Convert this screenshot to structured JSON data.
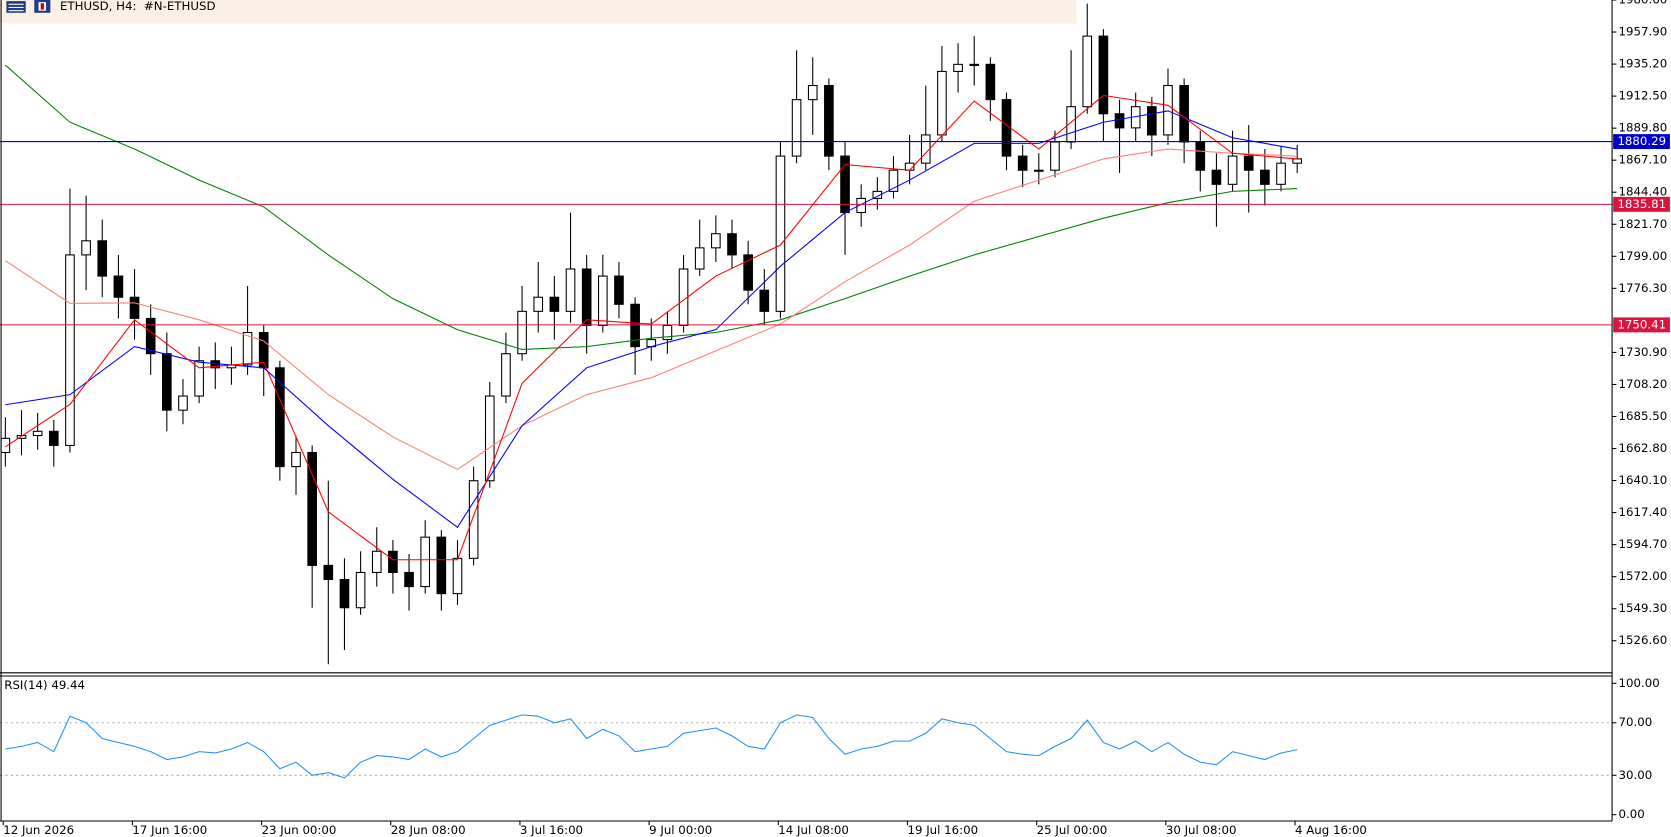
{
  "chart_data": [
    {
      "type": "candlestick",
      "title": "ETHUSD, H4:  #N-ETHUSD",
      "categories": [
        "12 Jun 2026",
        null,
        null,
        null,
        null,
        null,
        null,
        null,
        "17 Jun 16:00",
        null,
        null,
        null,
        null,
        null,
        null,
        null,
        "23 Jun 00:00",
        null,
        null,
        null,
        null,
        null,
        null,
        null,
        "28 Jun 08:00",
        null,
        null,
        null,
        null,
        null,
        null,
        null,
        "3 Jul 16:00",
        null,
        null,
        null,
        null,
        null,
        null,
        null,
        "9 Jul 00:00",
        null,
        null,
        null,
        null,
        null,
        null,
        null,
        "14 Jul 08:00",
        null,
        null,
        null,
        null,
        null,
        null,
        null,
        "19 Jul 16:00",
        null,
        null,
        null,
        null,
        null,
        null,
        null,
        "25 Jul 00:00",
        null,
        null,
        null,
        null,
        null,
        null,
        null,
        "30 Jul 08:00",
        null,
        null,
        null,
        null,
        null,
        null,
        null,
        "4 Aug 16:00"
      ],
      "candles": [
        [
          1660,
          1685,
          1650,
          1670
        ],
        [
          1670,
          1690,
          1658,
          1672
        ],
        [
          1672,
          1688,
          1662,
          1675
        ],
        [
          1675,
          1683,
          1650,
          1665
        ],
        [
          1665,
          1847,
          1660,
          1800
        ],
        [
          1800,
          1842,
          1775,
          1810
        ],
        [
          1810,
          1825,
          1770,
          1785
        ],
        [
          1785,
          1800,
          1755,
          1770
        ],
        [
          1770,
          1790,
          1740,
          1755
        ],
        [
          1755,
          1765,
          1715,
          1730
        ],
        [
          1730,
          1745,
          1675,
          1690
        ],
        [
          1690,
          1712,
          1680,
          1700
        ],
        [
          1700,
          1735,
          1695,
          1725
        ],
        [
          1725,
          1738,
          1705,
          1720
        ],
        [
          1720,
          1735,
          1708,
          1722
        ],
        [
          1722,
          1778,
          1715,
          1745
        ],
        [
          1745,
          1750,
          1700,
          1720
        ],
        [
          1720,
          1725,
          1640,
          1650
        ],
        [
          1650,
          1672,
          1630,
          1660
        ],
        [
          1660,
          1665,
          1550,
          1580
        ],
        [
          1580,
          1640,
          1510,
          1570
        ],
        [
          1570,
          1585,
          1520,
          1550
        ],
        [
          1550,
          1590,
          1545,
          1575
        ],
        [
          1575,
          1607,
          1565,
          1590
        ],
        [
          1590,
          1598,
          1560,
          1575
        ],
        [
          1575,
          1588,
          1548,
          1565
        ],
        [
          1565,
          1612,
          1560,
          1600
        ],
        [
          1600,
          1605,
          1548,
          1560
        ],
        [
          1560,
          1598,
          1552,
          1585
        ],
        [
          1585,
          1650,
          1580,
          1640
        ],
        [
          1640,
          1710,
          1635,
          1700
        ],
        [
          1700,
          1745,
          1695,
          1730
        ],
        [
          1730,
          1778,
          1725,
          1760
        ],
        [
          1760,
          1795,
          1745,
          1770
        ],
        [
          1770,
          1785,
          1740,
          1760
        ],
        [
          1760,
          1830,
          1752,
          1790
        ],
        [
          1790,
          1800,
          1730,
          1750
        ],
        [
          1750,
          1800,
          1745,
          1785
        ],
        [
          1785,
          1795,
          1755,
          1765
        ],
        [
          1765,
          1770,
          1715,
          1735
        ],
        [
          1735,
          1755,
          1725,
          1740
        ],
        [
          1740,
          1760,
          1730,
          1750
        ],
        [
          1750,
          1800,
          1745,
          1790
        ],
        [
          1790,
          1825,
          1785,
          1805
        ],
        [
          1805,
          1828,
          1795,
          1815
        ],
        [
          1815,
          1825,
          1790,
          1800
        ],
        [
          1800,
          1810,
          1765,
          1775
        ],
        [
          1775,
          1790,
          1750,
          1760
        ],
        [
          1760,
          1880,
          1755,
          1870
        ],
        [
          1870,
          1945,
          1865,
          1910
        ],
        [
          1910,
          1940,
          1885,
          1920
        ],
        [
          1920,
          1925,
          1860,
          1870
        ],
        [
          1870,
          1880,
          1800,
          1830
        ],
        [
          1830,
          1850,
          1820,
          1840
        ],
        [
          1840,
          1855,
          1832,
          1845
        ],
        [
          1845,
          1870,
          1840,
          1860
        ],
        [
          1860,
          1885,
          1850,
          1865
        ],
        [
          1865,
          1920,
          1860,
          1885
        ],
        [
          1885,
          1948,
          1880,
          1930
        ],
        [
          1930,
          1950,
          1915,
          1935
        ],
        [
          1935,
          1955,
          1920,
          1935
        ],
        [
          1935,
          1940,
          1895,
          1910
        ],
        [
          1910,
          1915,
          1860,
          1870
        ],
        [
          1870,
          1878,
          1848,
          1860
        ],
        [
          1860,
          1872,
          1850,
          1860
        ],
        [
          1860,
          1888,
          1855,
          1880
        ],
        [
          1880,
          1945,
          1875,
          1905
        ],
        [
          1905,
          1978,
          1900,
          1955
        ],
        [
          1955,
          1960,
          1880,
          1900
        ],
        [
          1900,
          1910,
          1858,
          1890
        ],
        [
          1890,
          1915,
          1880,
          1905
        ],
        [
          1905,
          1912,
          1870,
          1885
        ],
        [
          1885,
          1932,
          1878,
          1920
        ],
        [
          1920,
          1925,
          1865,
          1880
        ],
        [
          1880,
          1888,
          1845,
          1860
        ],
        [
          1860,
          1872,
          1820,
          1850
        ],
        [
          1850,
          1888,
          1845,
          1870
        ],
        [
          1870,
          1892,
          1830,
          1860
        ],
        [
          1860,
          1875,
          1835,
          1850
        ],
        [
          1850,
          1877,
          1845,
          1865
        ],
        [
          1865,
          1878,
          1858,
          1868
        ]
      ],
      "overlays": [
        {
          "color": "#008000",
          "x": [
            0,
            4,
            8,
            12,
            16,
            20,
            24,
            28,
            32,
            36,
            40,
            44,
            48,
            52,
            56,
            60,
            64,
            68,
            72,
            76,
            80
          ],
          "values": [
            1934.5,
            1894,
            1875,
            1853,
            1834,
            1800,
            1769,
            1747,
            1733,
            1735,
            1741,
            1745,
            1754,
            1769,
            1785,
            1800,
            1813,
            1826,
            1837,
            1845,
            1847
          ]
        },
        {
          "color": "#fa8072",
          "x": [
            0,
            4,
            8,
            12,
            16,
            20,
            24,
            28,
            32,
            36,
            40,
            44,
            48,
            52,
            56,
            60,
            64,
            68,
            72,
            76,
            80
          ],
          "values": [
            1795.9,
            1765.7,
            1766,
            1754,
            1739,
            1701,
            1671,
            1648,
            1679,
            1701,
            1713,
            1732,
            1751,
            1781,
            1807,
            1838,
            1853,
            1868,
            1875,
            1872,
            1870
          ]
        },
        {
          "color": "#0000ff",
          "x": [
            0,
            4,
            8,
            12,
            16,
            20,
            24,
            28,
            32,
            36,
            40,
            44,
            48,
            52,
            56,
            60,
            64,
            68,
            72,
            76,
            80
          ],
          "values": [
            1693.8,
            1701,
            1735,
            1724,
            1720,
            1679,
            1641,
            1607,
            1679,
            1720,
            1735,
            1747,
            1792,
            1830,
            1853,
            1879,
            1879,
            1894,
            1902,
            1883,
            1875
          ]
        },
        {
          "color": "#ff0000",
          "x": [
            0,
            4,
            8,
            12,
            16,
            20,
            24,
            28,
            32,
            36,
            40,
            44,
            48,
            52,
            56,
            60,
            64,
            68,
            72,
            76,
            80
          ],
          "values": [
            1664,
            1694,
            1754,
            1720,
            1724,
            1618,
            1584,
            1584,
            1709,
            1754,
            1751,
            1785,
            1807,
            1864,
            1860,
            1909,
            1875,
            1913,
            1906,
            1872,
            1868
          ]
        }
      ],
      "hlines": [
        {
          "value": 1880.29,
          "color": "#0000cd"
        },
        {
          "value": 1835.81,
          "color": "#dc143c"
        },
        {
          "value": 1750.41,
          "color": "#dc143c"
        }
      ],
      "ylim": [
        1504.66,
        1980.6
      ],
      "yticks": [
        {
          "value": 1526.6,
          "label": "1526.60"
        },
        {
          "value": 1549.3,
          "label": "1549.30"
        },
        {
          "value": 1572,
          "label": "1572.00"
        },
        {
          "value": 1594.7,
          "label": "1594.70"
        },
        {
          "value": 1617.4,
          "label": "1617.40"
        },
        {
          "value": 1640.1,
          "label": "1640.10"
        },
        {
          "value": 1662.8,
          "label": "1662.80"
        },
        {
          "value": 1685.5,
          "label": "1685.50"
        },
        {
          "value": 1708.2,
          "label": "1708.20"
        },
        {
          "value": 1730.9,
          "label": "1730.90"
        },
        {
          "value": 1776.3,
          "label": "1776.30"
        },
        {
          "value": 1799,
          "label": "1799.00"
        },
        {
          "value": 1821.7,
          "label": "1821.70"
        },
        {
          "value": 1844.4,
          "label": "1844.40"
        },
        {
          "value": 1867.1,
          "label": "1867.10"
        },
        {
          "value": 1889.8,
          "label": "1889.80"
        },
        {
          "value": 1912.5,
          "label": "1912.50"
        },
        {
          "value": 1935.2,
          "label": "1935.20"
        },
        {
          "value": 1957.9,
          "label": "1957.90"
        },
        {
          "value": 1980.6,
          "label": "1980.60"
        }
      ]
    },
    {
      "type": "line",
      "title": "RSI(14) 49.44",
      "color": "#1e90ff",
      "values": [
        50,
        52,
        55,
        48,
        75,
        70,
        58,
        55,
        52,
        48,
        42,
        44,
        48,
        47,
        50,
        55,
        48,
        35,
        40,
        30,
        32,
        28,
        40,
        45,
        44,
        42,
        50,
        44,
        48,
        58,
        68,
        72,
        76,
        75,
        70,
        73,
        58,
        65,
        60,
        48,
        50,
        52,
        62,
        64,
        66,
        60,
        52,
        50,
        70,
        76,
        74,
        58,
        46,
        50,
        52,
        56,
        56,
        62,
        73,
        70,
        68,
        58,
        48,
        46,
        45,
        52,
        58,
        72,
        55,
        50,
        56,
        48,
        55,
        46,
        40,
        38,
        48,
        45,
        42,
        47,
        49.44
      ],
      "levels": [
        70,
        30
      ],
      "ylim": [
        -4.8,
        105.6
      ],
      "yticks": [
        {
          "value": 100,
          "label": "100.00"
        },
        {
          "value": 70,
          "label": "70.00"
        },
        {
          "value": 30,
          "label": "30.00"
        },
        {
          "value": 0,
          "label": "0.00"
        }
      ]
    }
  ]
}
